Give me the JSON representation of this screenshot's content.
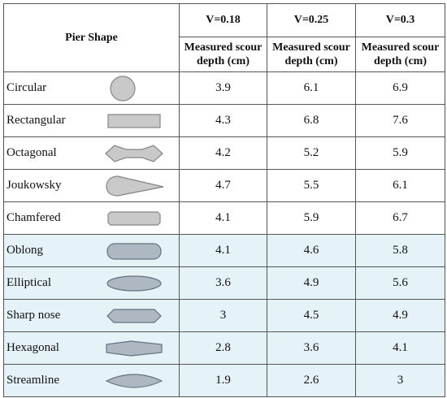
{
  "table": {
    "header": {
      "pier_shape": "Pier Shape",
      "velocities": [
        "V=0.18",
        "V=0.25",
        "V=0.3"
      ],
      "measures": [
        "Measured scour depth (cm)",
        "Measured scour depth (cm)",
        "Measured scour depth (cm)"
      ]
    },
    "rows": [
      {
        "name": "Circular",
        "values": [
          3.9,
          6.1,
          6.9
        ]
      },
      {
        "name": "Rectangular",
        "values": [
          4.3,
          6.8,
          7.6
        ]
      },
      {
        "name": "Octagonal",
        "values": [
          4.2,
          5.2,
          5.9
        ]
      },
      {
        "name": "Joukowsky",
        "values": [
          4.7,
          5.5,
          6.1
        ]
      },
      {
        "name": "Chamfered",
        "values": [
          4.1,
          5.9,
          6.7
        ]
      },
      {
        "name": "Oblong",
        "values": [
          4.1,
          4.6,
          5.8
        ]
      },
      {
        "name": "Elliptical",
        "values": [
          3.6,
          4.9,
          5.6
        ]
      },
      {
        "name": "Sharp nose",
        "values": [
          3,
          4.5,
          4.9
        ]
      },
      {
        "name": "Hexagonal",
        "values": [
          2.8,
          3.6,
          4.1
        ]
      },
      {
        "name": "Streamline",
        "values": [
          1.9,
          2.6,
          3
        ]
      }
    ]
  }
}
